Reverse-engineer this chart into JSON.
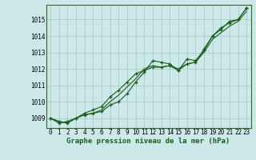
{
  "x": [
    0,
    1,
    2,
    3,
    4,
    5,
    6,
    7,
    8,
    9,
    10,
    11,
    12,
    13,
    14,
    15,
    16,
    17,
    18,
    19,
    20,
    21,
    22,
    23
  ],
  "line1": [
    1009.0,
    1008.8,
    1008.7,
    1009.0,
    1009.2,
    1009.3,
    1009.4,
    1009.8,
    1010.0,
    1010.5,
    1011.2,
    1011.8,
    1012.5,
    1012.4,
    1012.3,
    1011.9,
    1012.6,
    1012.5,
    1013.1,
    1014.0,
    1014.5,
    1014.8,
    1015.0,
    1015.7
  ],
  "line2": [
    1009.0,
    1008.8,
    1008.7,
    1009.0,
    1009.2,
    1009.3,
    1009.5,
    1010.0,
    1010.4,
    1010.9,
    1011.4,
    1012.0,
    1012.2,
    1012.1,
    1012.2,
    1012.0,
    1012.3,
    1012.4,
    1013.0,
    1013.8,
    1014.2,
    1014.6,
    1014.9,
    1015.5
  ],
  "line3": [
    1009.0,
    1008.7,
    1008.8,
    1009.0,
    1009.3,
    1009.5,
    1009.7,
    1010.3,
    1010.7,
    1011.2,
    1011.7,
    1011.9,
    1012.1,
    1012.1,
    1012.2,
    1011.9,
    1012.3,
    1012.4,
    1013.2,
    1014.0,
    1014.4,
    1014.9,
    1015.0,
    1015.7
  ],
  "bg_color": "#cce8e8",
  "line_color": "#1a5c1a",
  "grid_color": "#aacccc",
  "xlabel": "Graphe pression niveau de la mer (hPa)",
  "ylim": [
    1008.4,
    1015.9
  ],
  "yticks": [
    1009,
    1010,
    1011,
    1012,
    1013,
    1014,
    1015
  ],
  "xticks": [
    0,
    1,
    2,
    3,
    4,
    5,
    6,
    7,
    8,
    9,
    10,
    11,
    12,
    13,
    14,
    15,
    16,
    17,
    18,
    19,
    20,
    21,
    22,
    23
  ],
  "tick_fontsize": 5.5,
  "xlabel_fontsize": 6.5
}
